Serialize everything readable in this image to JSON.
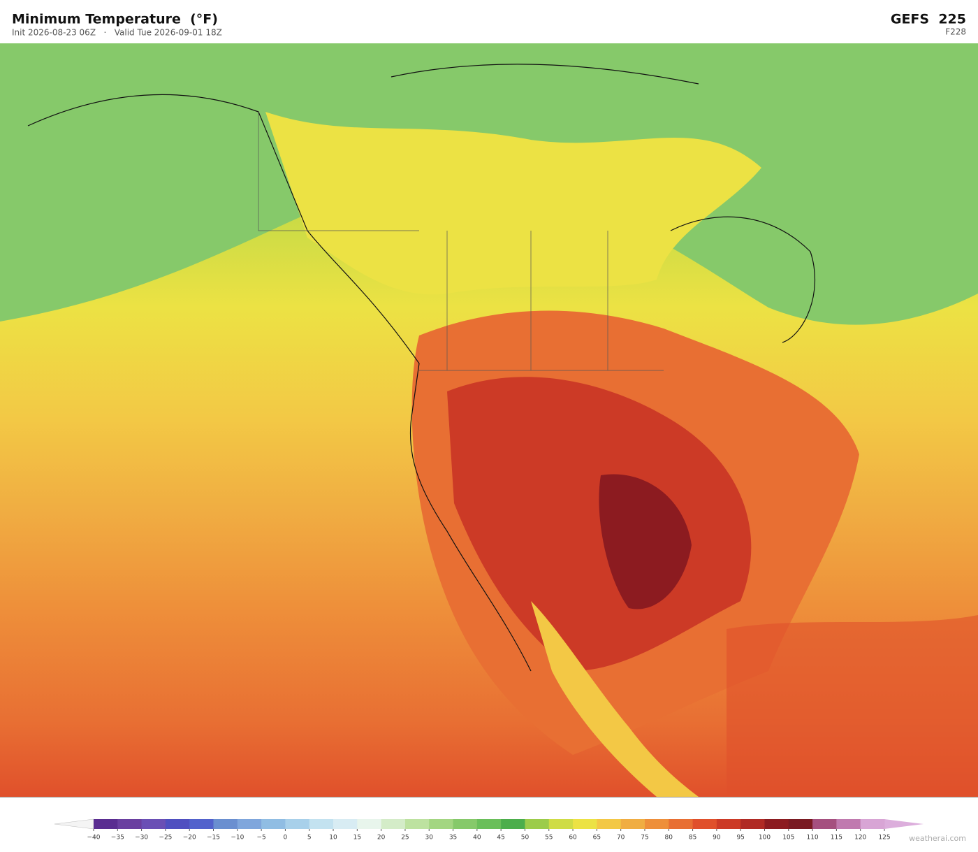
{
  "header": {
    "title": "Minimum Temperature  (°F)",
    "subtitle": "Init 2026-08-23 06Z   ·   Valid Tue 2026-09-01 18Z",
    "model": "GEFS  225",
    "forecast_hour": "F228"
  },
  "colorbar": {
    "ticks": [
      {
        "value": -40,
        "label": "−40"
      },
      {
        "value": -35,
        "label": "−35"
      },
      {
        "value": -30,
        "label": "−30"
      },
      {
        "value": -25,
        "label": "−25"
      },
      {
        "value": -20,
        "label": "−20"
      },
      {
        "value": -15,
        "label": "−15"
      },
      {
        "value": -10,
        "label": "−10"
      },
      {
        "value": -5,
        "label": "−5"
      },
      0,
      5,
      10,
      15,
      20,
      25,
      30,
      35,
      40,
      45,
      50,
      55,
      60,
      65,
      70,
      75,
      80,
      85,
      90,
      95,
      100,
      105,
      110,
      115,
      120,
      125
    ],
    "colors": [
      "#5a2d91",
      "#6a3fa0",
      "#6a4fb5",
      "#4f4fc0",
      "#5262cc",
      "#6a8fd0",
      "#7fa6dc",
      "#90bde3",
      "#a8d0ea",
      "#c3e2f0",
      "#d8ecf3",
      "#e8f5ec",
      "#d4ecc8",
      "#bde2a0",
      "#a3d681",
      "#86c96a",
      "#6abf5a",
      "#4cae4c",
      "#9ccc4a",
      "#cfdc45",
      "#ece244",
      "#f3c845",
      "#f0ad42",
      "#ee8f3a",
      "#e86f33",
      "#e0502b",
      "#cc3a26",
      "#b02a24",
      "#8c1b20",
      "#7a1a22",
      "#a5507f",
      "#c07aaf",
      "#d8a5d5"
    ],
    "extend_colors": [
      "#f4f4f4",
      "#dcaedc"
    ]
  },
  "footer": {
    "watermark": "weatherai.com"
  }
}
